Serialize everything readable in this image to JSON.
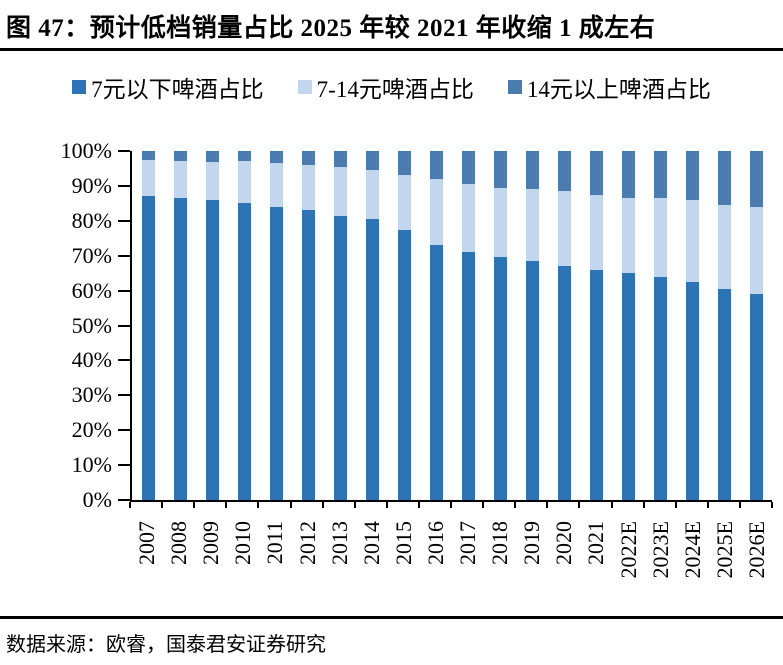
{
  "figure": {
    "title": "图 47：预计低档销量占比 2025 年较 2021 年收缩 1 成左右",
    "source": "数据来源：欧睿，国泰君安证券研究"
  },
  "colors": {
    "series_low": "#2E74B5",
    "series_mid": "#C2D7EE",
    "series_high": "#4C7CAD",
    "axis": "#000000",
    "text": "#000000"
  },
  "chart_data": {
    "type": "bar",
    "stacked": true,
    "stack_unit": "percent",
    "title": "图 47：预计低档销量占比 2025 年较 2021 年收缩 1 成左右",
    "categories": [
      "2007",
      "2008",
      "2009",
      "2010",
      "2011",
      "2012",
      "2013",
      "2014",
      "2015",
      "2016",
      "2017",
      "2018",
      "2019",
      "2020",
      "2021",
      "2022E",
      "2023E",
      "2024E",
      "2025E",
      "2026E"
    ],
    "series": [
      {
        "name": "7元以下啤酒占比",
        "color": "#2E74B5",
        "values": [
          87,
          86.5,
          86,
          85,
          84,
          83,
          81.5,
          80.5,
          77.5,
          73,
          71,
          69.5,
          68.5,
          67,
          66,
          65,
          64,
          62.5,
          60.5,
          59
        ]
      },
      {
        "name": "7-14元啤酒占比",
        "color": "#C2D7EE",
        "values": [
          10.5,
          10.5,
          11,
          12,
          12.5,
          13,
          14,
          14,
          15.5,
          19,
          19.5,
          20,
          20.5,
          21.5,
          21.5,
          21.5,
          22.5,
          23.5,
          24,
          25
        ]
      },
      {
        "name": "14元以上啤酒占比",
        "color": "#4C7CAD",
        "values": [
          2.5,
          3,
          3,
          3,
          3.5,
          4,
          4.5,
          5.5,
          7,
          8,
          9.5,
          10.5,
          11,
          11.5,
          12.5,
          13.5,
          13.5,
          14,
          15.5,
          16
        ]
      }
    ],
    "y_ticks": [
      "100%",
      "90%",
      "80%",
      "70%",
      "60%",
      "50%",
      "40%",
      "30%",
      "20%",
      "10%",
      "0%"
    ],
    "ylim": [
      0,
      100
    ],
    "grid": false,
    "legend_position": "top",
    "xlabel": "",
    "ylabel": ""
  }
}
